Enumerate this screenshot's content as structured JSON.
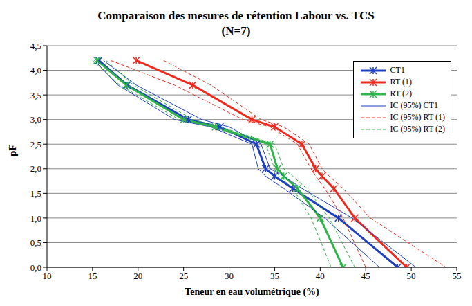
{
  "chart_data": {
    "type": "line",
    "title": "Comparaison des mesures de rétention Labour vs. TCS",
    "subtitle": "(N=7)",
    "x_label": "Teneur en eau volumétrique (%)",
    "y_label": "pF",
    "xlim": [
      10,
      55
    ],
    "xticks": [
      10,
      15,
      20,
      25,
      30,
      35,
      40,
      45,
      50,
      55
    ],
    "ylim": [
      0,
      4.5
    ],
    "yticks": [
      {
        "value": 0,
        "label": "0,0"
      },
      {
        "value": 0.5,
        "label": "0,5"
      },
      {
        "value": 1,
        "label": "1,0"
      },
      {
        "value": 1.5,
        "label": "1,5"
      },
      {
        "value": 2,
        "label": "2,0"
      },
      {
        "value": 2.5,
        "label": "2,5"
      },
      {
        "value": 3,
        "label": "3,0"
      },
      {
        "value": 3.5,
        "label": "3,5"
      },
      {
        "value": 4,
        "label": "4,0"
      },
      {
        "value": 4.5,
        "label": "4,5"
      }
    ],
    "grid": true,
    "legend": "upper right",
    "series": [
      {
        "name": "CT1",
        "color": "#1f3fbf",
        "marker": "asterisk",
        "line_style": "solid",
        "x": [
          15.7,
          18.8,
          25.5,
          29,
          33,
          34,
          35,
          37,
          42,
          48.5
        ],
        "values": [
          4.2,
          3.7,
          3.0,
          2.85,
          2.5,
          2.0,
          1.85,
          1.6,
          1.0,
          0
        ]
      },
      {
        "name": "RT (1)",
        "color": "#ee2a1f",
        "marker": "asterisk",
        "line_style": "solid",
        "x": [
          19.8,
          26,
          32.5,
          35,
          38,
          39.5,
          40.2,
          41.5,
          43.8,
          49.5
        ],
        "values": [
          4.2,
          3.7,
          3.0,
          2.85,
          2.5,
          2.0,
          1.85,
          1.6,
          1.0,
          0
        ]
      },
      {
        "name": "RT (2)",
        "color": "#2fb34a",
        "marker": "asterisk",
        "line_style": "solid",
        "x": [
          15.5,
          18.7,
          25,
          28.5,
          34.5,
          35.3,
          36,
          37.5,
          40,
          42.5
        ],
        "values": [
          4.2,
          3.7,
          3.0,
          2.85,
          2.5,
          2.0,
          1.85,
          1.6,
          1.0,
          0
        ]
      },
      {
        "name": "IC (95%) CT1",
        "color": "#1f3fbf",
        "line_style": "solid",
        "values": [
          4.2,
          3.7,
          3.0,
          2.85,
          2.5,
          2.0,
          1.85,
          1.6,
          1.0,
          0
        ],
        "x_lower": [
          15.2,
          17.8,
          24,
          28,
          32.5,
          33.2,
          34,
          36,
          40.5,
          46.5
        ],
        "x_upper": [
          16.2,
          19.8,
          27,
          30,
          33.5,
          34.5,
          36,
          38,
          43.5,
          50.5
        ]
      },
      {
        "name": "IC (95%) RT (1)",
        "color": "#ee2a1f",
        "line_style": "dashed",
        "values": [
          4.2,
          3.7,
          3.0,
          2.85,
          2.5,
          2.0,
          1.85,
          1.6,
          1.0,
          0
        ],
        "x_lower": [
          17,
          24,
          31.5,
          34.5,
          37.5,
          39,
          39.5,
          40.5,
          42.5,
          45
        ],
        "x_upper": [
          22.8,
          28,
          33.5,
          36,
          38.8,
          40.2,
          41,
          42.5,
          45.5,
          53.8
        ]
      },
      {
        "name": "IC (95%) RT (2)",
        "color": "#2fb34a",
        "line_style": "dashed",
        "values": [
          4.2,
          3.7,
          3.0,
          2.85,
          2.5,
          2.0,
          1.85,
          1.6,
          1.0,
          0
        ],
        "x_lower": [
          15,
          18,
          24.5,
          28,
          34,
          35,
          35.5,
          37,
          39,
          41.2
        ],
        "x_upper": [
          16.5,
          19.5,
          26,
          29,
          35,
          36,
          37,
          38.5,
          41,
          43.8
        ]
      }
    ]
  }
}
